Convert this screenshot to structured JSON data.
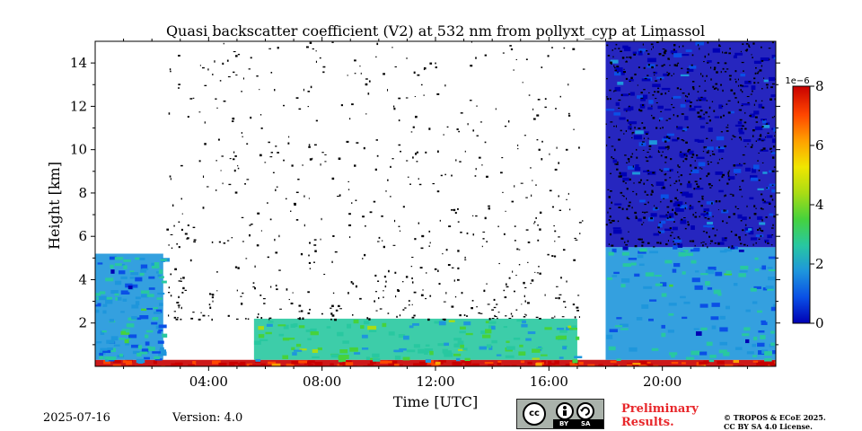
{
  "chart_data": {
    "type": "heatmap",
    "title": "Quasi backscatter coefficient (V2) at 532 nm from pollyxt_cyp at Limassol",
    "xlabel": "Time [UTC]",
    "ylabel": "Height [km]",
    "xlim": [
      0,
      24
    ],
    "ylim": [
      0,
      15
    ],
    "x_ticks": [
      4,
      8,
      12,
      16,
      20
    ],
    "x_tick_labels": [
      "04:00",
      "08:00",
      "12:00",
      "16:00",
      "20:00"
    ],
    "y_ticks": [
      2,
      4,
      6,
      8,
      10,
      12,
      14
    ],
    "y_tick_labels": [
      "2",
      "4",
      "6",
      "8",
      "10",
      "12",
      "14"
    ],
    "colorbar": {
      "min": 0,
      "max": 8,
      "ticks": [
        0,
        2,
        4,
        6,
        8
      ],
      "tick_labels": [
        "0",
        "2",
        "4",
        "6",
        "8"
      ],
      "scale_label": "1e−6",
      "colormap": "jet",
      "colors": [
        "#0000b4",
        "#0a50e6",
        "#1e96dc",
        "#28c8a0",
        "#46d23c",
        "#aadc14",
        "#f0e600",
        "#ffa000",
        "#ff4600",
        "#c80000"
      ]
    },
    "features": [
      {
        "kind": "surface_aerosol",
        "t_start": 0,
        "t_end": 24,
        "h_bottom": 0,
        "h_top": 0.3,
        "value": 7.5
      },
      {
        "kind": "boundary_layer",
        "t_start": 0,
        "t_end": 2.4,
        "h_bottom": 0.3,
        "h_top": 5.2,
        "value": 2
      },
      {
        "kind": "aerosol_layer",
        "t_start": 5.6,
        "t_end": 17,
        "h_bottom": 0.3,
        "h_top": 2.2,
        "value": 3
      },
      {
        "kind": "boundary_layer",
        "t_start": 18,
        "t_end": 24,
        "h_bottom": 0.3,
        "h_top": 5.5,
        "value": 2
      },
      {
        "kind": "clear_sky_noise",
        "t_start": 2.5,
        "t_end": 17.2,
        "h_bottom": 2.2,
        "h_top": 15,
        "value": 0
      },
      {
        "kind": "night_background",
        "t_start": 18,
        "t_end": 24,
        "h_bottom": 5.5,
        "h_top": 15,
        "value": 0.5
      }
    ]
  },
  "footer": {
    "date": "2025-07-16",
    "version": "Version: 4.0",
    "license_badge": [
      "cc",
      "by",
      "sa"
    ],
    "license_labels": [
      "BY",
      "SA"
    ],
    "preliminary": [
      "Preliminary",
      "Results."
    ],
    "copyright": [
      "© TROPOS & ECoE 2025.",
      "CC BY SA 4.0 License."
    ]
  }
}
